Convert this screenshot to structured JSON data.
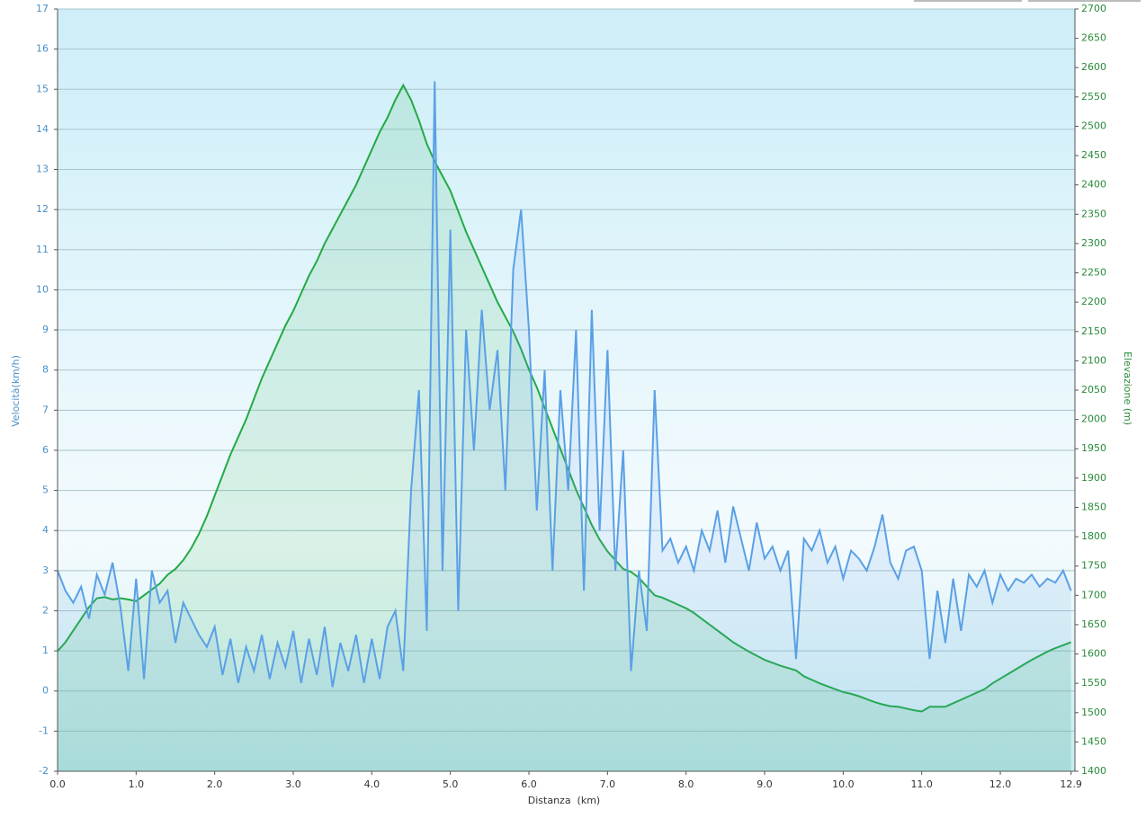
{
  "chart_data": {
    "type": "line",
    "x_label": "Distanza  (km)",
    "y_label": "Velocità(km/h)",
    "y2_label": "Elevazione (m)",
    "x": [
      0,
      0.1,
      0.2,
      0.3,
      0.4,
      0.5,
      0.6,
      0.7,
      0.8,
      0.9,
      1,
      1.1,
      1.2,
      1.3,
      1.4,
      1.5,
      1.6,
      1.7,
      1.8,
      1.9,
      2,
      2.1,
      2.2,
      2.3,
      2.4,
      2.5,
      2.6,
      2.7,
      2.8,
      2.9,
      3,
      3.1,
      3.2,
      3.3,
      3.4,
      3.5,
      3.6,
      3.7,
      3.8,
      3.9,
      4,
      4.1,
      4.2,
      4.3,
      4.4,
      4.5,
      4.6,
      4.7,
      4.8,
      4.9,
      5,
      5.1,
      5.2,
      5.3,
      5.4,
      5.5,
      5.6,
      5.7,
      5.8,
      5.9,
      6,
      6.1,
      6.2,
      6.3,
      6.4,
      6.5,
      6.6,
      6.7,
      6.8,
      6.9,
      7,
      7.1,
      7.2,
      7.3,
      7.4,
      7.5,
      7.6,
      7.7,
      7.8,
      7.9,
      8,
      8.1,
      8.2,
      8.3,
      8.4,
      8.5,
      8.6,
      8.7,
      8.8,
      8.9,
      9,
      9.1,
      9.2,
      9.3,
      9.4,
      9.5,
      9.6,
      9.7,
      9.8,
      9.9,
      10,
      10.1,
      10.2,
      10.3,
      10.4,
      10.5,
      10.6,
      10.7,
      10.8,
      10.9,
      11,
      11.1,
      11.2,
      11.3,
      11.4,
      11.5,
      11.6,
      11.7,
      11.8,
      11.9,
      12,
      12.1,
      12.2,
      12.3,
      12.4,
      12.5,
      12.6,
      12.7,
      12.8,
      12.9
    ],
    "series": [
      {
        "color": "#5aa0e6",
        "axis": "y",
        "values": [
          3.0,
          2.5,
          2.2,
          2.6,
          1.8,
          2.9,
          2.4,
          3.2,
          2.1,
          0.5,
          2.8,
          0.3,
          3.0,
          2.2,
          2.5,
          1.2,
          2.2,
          1.8,
          1.4,
          1.1,
          1.6,
          0.4,
          1.3,
          0.2,
          1.1,
          0.5,
          1.4,
          0.3,
          1.2,
          0.6,
          1.5,
          0.2,
          1.3,
          0.4,
          1.6,
          0.1,
          1.2,
          0.5,
          1.4,
          0.2,
          1.3,
          0.3,
          1.6,
          2.0,
          0.5,
          5.0,
          7.5,
          1.5,
          15.2,
          3.0,
          11.5,
          2.0,
          9.0,
          6.0,
          9.5,
          7.0,
          8.5,
          5.0,
          10.5,
          12.0,
          9.0,
          4.5,
          8.0,
          3.0,
          7.5,
          5.0,
          9.0,
          2.5,
          9.5,
          4.0,
          8.5,
          3.0,
          6.0,
          0.5,
          3.0,
          1.5,
          7.5,
          3.5,
          3.8,
          3.2,
          3.6,
          3.0,
          4.0,
          3.5,
          4.5,
          3.2,
          4.6,
          3.8,
          3.0,
          4.2,
          3.3,
          3.6,
          3.0,
          3.5,
          0.8,
          3.8,
          3.5,
          4.0,
          3.2,
          3.6,
          2.8,
          3.5,
          3.3,
          3.0,
          3.6,
          4.4,
          3.2,
          2.8,
          3.5,
          3.6,
          3.0,
          0.8,
          2.5,
          1.2,
          2.8,
          1.5,
          2.9,
          2.6,
          3.0,
          2.2,
          2.9,
          2.5,
          2.8,
          2.7,
          2.9,
          2.6,
          2.8,
          2.7,
          3.0,
          2.5
        ]
      },
      {
        "color": "#22aa44",
        "axis": "y2",
        "values": [
          1605,
          1620,
          1640,
          1660,
          1680,
          1695,
          1697,
          1693,
          1695,
          1693,
          1690,
          1700,
          1710,
          1720,
          1735,
          1745,
          1760,
          1780,
          1805,
          1835,
          1870,
          1905,
          1940,
          1970,
          2000,
          2035,
          2070,
          2100,
          2130,
          2160,
          2185,
          2215,
          2245,
          2270,
          2300,
          2325,
          2350,
          2375,
          2400,
          2430,
          2460,
          2490,
          2515,
          2545,
          2570,
          2545,
          2510,
          2470,
          2440,
          2415,
          2390,
          2355,
          2320,
          2290,
          2260,
          2230,
          2200,
          2175,
          2150,
          2120,
          2085,
          2055,
          2020,
          1985,
          1950,
          1915,
          1880,
          1850,
          1820,
          1795,
          1775,
          1760,
          1745,
          1740,
          1730,
          1715,
          1700,
          1696,
          1690,
          1684,
          1678,
          1670,
          1660,
          1650,
          1640,
          1630,
          1620,
          1612,
          1604,
          1597,
          1590,
          1585,
          1580,
          1576,
          1572,
          1562,
          1556,
          1550,
          1545,
          1540,
          1535,
          1532,
          1528,
          1523,
          1518,
          1514,
          1511,
          1510,
          1507,
          1504,
          1502,
          1510,
          1510,
          1510,
          1516,
          1522,
          1528,
          1534,
          1540,
          1550,
          1558,
          1566,
          1574,
          1582,
          1590,
          1597,
          1604,
          1610,
          1615,
          1620
        ]
      }
    ],
    "xlim": [
      0,
      12.95
    ],
    "ylim": [
      -2,
      17
    ],
    "y2lim": [
      1400,
      2700
    ],
    "xticks": [
      {
        "value": 0,
        "label": "0.0"
      },
      {
        "value": 1,
        "label": "1.0"
      },
      {
        "value": 2,
        "label": "2.0"
      },
      {
        "value": 3,
        "label": "3.0"
      },
      {
        "value": 4,
        "label": "4.0"
      },
      {
        "value": 5,
        "label": "5.0"
      },
      {
        "value": 6,
        "label": "6.0"
      },
      {
        "value": 7,
        "label": "7.0"
      },
      {
        "value": 8,
        "label": "8.0"
      },
      {
        "value": 9,
        "label": "9.0"
      },
      {
        "value": 10,
        "label": "10.0"
      },
      {
        "value": 11,
        "label": "11.0"
      },
      {
        "value": 12,
        "label": "12.0"
      },
      12.9
    ],
    "yticks": [
      -2,
      -1,
      0,
      1,
      2,
      3,
      4,
      5,
      6,
      7,
      8,
      9,
      10,
      11,
      12,
      13,
      14,
      15,
      16,
      17
    ],
    "y2ticks": [
      1400,
      1450,
      1500,
      1550,
      1600,
      1650,
      1700,
      1750,
      1800,
      1850,
      1900,
      1950,
      2000,
      2050,
      2100,
      2150,
      2200,
      2250,
      2300,
      2350,
      2400,
      2450,
      2500,
      2550,
      2600,
      2650,
      2700
    ],
    "grid": true
  }
}
